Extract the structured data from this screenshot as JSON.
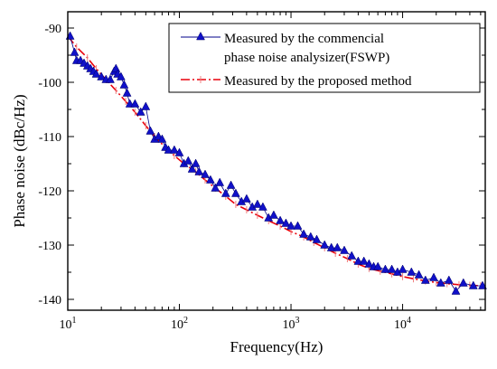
{
  "chart_data": {
    "type": "scatter",
    "title": "",
    "xlabel": "Frequency(Hz)",
    "ylabel": "Phase noise (dBc/Hz)",
    "xscale": "log",
    "xlim": [
      10,
      55000
    ],
    "ylim": [
      -142,
      -87
    ],
    "xticks": [
      10,
      100,
      1000,
      10000
    ],
    "xtick_labels": [
      {
        "base": "10",
        "exp": "1"
      },
      {
        "base": "10",
        "exp": "2"
      },
      {
        "base": "10",
        "exp": "3"
      },
      {
        "base": "10",
        "exp": "4"
      }
    ],
    "yticks": [
      -90,
      -100,
      -110,
      -120,
      -130,
      -140
    ],
    "ytick_labels": [
      "-90",
      "-100",
      "-110",
      "-120",
      "-130",
      "-140"
    ],
    "grid": false,
    "legend_position": "top-right",
    "series": [
      {
        "name": "Measured by the commencial phase noise analysizer(FSWP)",
        "legend_lines": [
          "Measured by the commencial",
          "phase noise analysizer(FSWP)"
        ],
        "color": "#00008b",
        "marker": "triangle",
        "style": "line+marker",
        "x": [
          10.5,
          11.5,
          12,
          13,
          14,
          15,
          16,
          17,
          18,
          20,
          22,
          24,
          26,
          27,
          28,
          30,
          32,
          34,
          36,
          40,
          45,
          50,
          55,
          60,
          65,
          70,
          75,
          80,
          90,
          100,
          110,
          120,
          130,
          140,
          150,
          170,
          190,
          210,
          230,
          260,
          290,
          320,
          360,
          400,
          450,
          500,
          560,
          630,
          700,
          800,
          900,
          1000,
          1150,
          1300,
          1500,
          1700,
          2000,
          2300,
          2600,
          3000,
          3500,
          4000,
          4500,
          5000,
          5500,
          6000,
          7000,
          8000,
          9000,
          10000,
          12000,
          14000,
          16000,
          19000,
          22000,
          26000,
          30000,
          35000,
          43000,
          52000
        ],
        "y": [
          -91.5,
          -94.5,
          -96,
          -96,
          -96.5,
          -97,
          -97.5,
          -98,
          -98.5,
          -99,
          -99.5,
          -99.5,
          -98,
          -97.5,
          -98.5,
          -99,
          -100.5,
          -102,
          -104,
          -104,
          -105.5,
          -104.5,
          -109,
          -110.5,
          -110,
          -110.5,
          -112,
          -112.5,
          -112.5,
          -113,
          -115,
          -114.5,
          -116,
          -115,
          -116.5,
          -117,
          -118,
          -119.5,
          -118.5,
          -120.5,
          -119,
          -120.5,
          -122,
          -121.5,
          -123,
          -122.5,
          -123,
          -125,
          -124.5,
          -125.5,
          -126,
          -126.5,
          -126.5,
          -128,
          -128.5,
          -129,
          -130,
          -130.5,
          -130.5,
          -131,
          -132,
          -133,
          -133,
          -133.5,
          -134,
          -134,
          -134.5,
          -134.5,
          -135,
          -134.5,
          -135,
          -135.5,
          -136.5,
          -136,
          -137,
          -136.5,
          -138.5,
          -137,
          -137.5,
          -137.5
        ]
      },
      {
        "name": "Measured by the proposed method",
        "legend_lines": [
          "Measured by the proposed method"
        ],
        "color": "#e8000b",
        "marker": "vertical-bar",
        "style": "dash-dot",
        "x": [
          10,
          12,
          15,
          18,
          22,
          27,
          33,
          40,
          50,
          60,
          75,
          90,
          110,
          140,
          170,
          210,
          260,
          320,
          400,
          500,
          630,
          800,
          1000,
          1300,
          1600,
          2000,
          2500,
          3200,
          4000,
          5000,
          6300,
          8000,
          10000,
          12500,
          16000,
          20000,
          25000,
          32000,
          40000,
          50000
        ],
        "y": [
          -91.5,
          -93.5,
          -95.5,
          -97.5,
          -99.5,
          -101.5,
          -103.5,
          -105.5,
          -108,
          -110,
          -112,
          -113.5,
          -115,
          -116.5,
          -118,
          -119.5,
          -121,
          -122.5,
          -123.5,
          -124.5,
          -125.5,
          -126.5,
          -127.5,
          -128.5,
          -129.5,
          -130.5,
          -131.5,
          -132.5,
          -133.5,
          -134.3,
          -134.8,
          -135.3,
          -135.8,
          -136.2,
          -136.6,
          -136.9,
          -137.1,
          -137.3,
          -137.4,
          -137.5
        ]
      }
    ]
  }
}
